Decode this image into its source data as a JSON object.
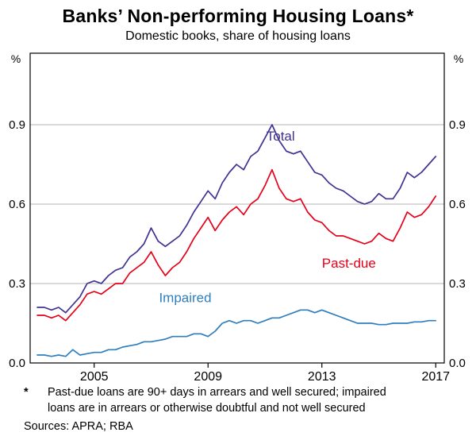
{
  "title": "Banks’ Non-performing Housing Loans*",
  "subtitle": "Domestic books, share of housing loans",
  "footnote": {
    "marker": "*",
    "line1": "Past-due loans are 90+ days in arrears and well secured; impaired",
    "line2": "loans are in arrears or otherwise doubtful and not well secured"
  },
  "sources": "Sources: APRA; RBA",
  "chart_data": {
    "type": "line",
    "title": "Banks’ Non-performing Housing Loans",
    "subtitle": "Domestic books, share of housing loans",
    "unit_left": "%",
    "unit_right": "%",
    "xlim": [
      2002.75,
      2017.3
    ],
    "ylim": [
      0,
      1.17
    ],
    "x_ticks": [
      2005,
      2009,
      2013,
      2017
    ],
    "y_ticks": [
      0.0,
      0.3,
      0.6,
      0.9
    ],
    "grid": true,
    "grid_color": "#b5b5b5",
    "axis_color": "#000000",
    "x_start": 2003.0,
    "x_step": 0.25,
    "series": [
      {
        "name": "Total",
        "color": "#3f3293",
        "label_pos": [
          2011.55,
          0.84
        ],
        "values": [
          0.21,
          0.21,
          0.2,
          0.21,
          0.19,
          0.22,
          0.25,
          0.3,
          0.31,
          0.3,
          0.33,
          0.35,
          0.36,
          0.4,
          0.42,
          0.45,
          0.51,
          0.46,
          0.44,
          0.46,
          0.48,
          0.52,
          0.57,
          0.61,
          0.65,
          0.62,
          0.68,
          0.72,
          0.75,
          0.73,
          0.78,
          0.8,
          0.85,
          0.9,
          0.84,
          0.8,
          0.79,
          0.8,
          0.76,
          0.72,
          0.71,
          0.68,
          0.66,
          0.65,
          0.63,
          0.61,
          0.6,
          0.61,
          0.64,
          0.62,
          0.62,
          0.66,
          0.72,
          0.7,
          0.72,
          0.75,
          0.78
        ]
      },
      {
        "name": "Past-due",
        "color": "#e60019",
        "label_pos": [
          2013.95,
          0.36
        ],
        "values": [
          0.18,
          0.18,
          0.17,
          0.18,
          0.16,
          0.19,
          0.22,
          0.26,
          0.27,
          0.26,
          0.28,
          0.3,
          0.3,
          0.34,
          0.36,
          0.38,
          0.42,
          0.37,
          0.33,
          0.36,
          0.38,
          0.42,
          0.47,
          0.51,
          0.55,
          0.5,
          0.54,
          0.57,
          0.59,
          0.56,
          0.6,
          0.62,
          0.67,
          0.73,
          0.66,
          0.62,
          0.61,
          0.62,
          0.57,
          0.54,
          0.53,
          0.5,
          0.48,
          0.48,
          0.47,
          0.46,
          0.45,
          0.46,
          0.49,
          0.47,
          0.46,
          0.51,
          0.57,
          0.55,
          0.56,
          0.59,
          0.63
        ]
      },
      {
        "name": "Impaired",
        "color": "#2f7ebe",
        "label_pos": [
          2008.2,
          0.23
        ],
        "values": [
          0.03,
          0.03,
          0.025,
          0.03,
          0.025,
          0.05,
          0.03,
          0.035,
          0.04,
          0.04,
          0.05,
          0.05,
          0.06,
          0.065,
          0.07,
          0.08,
          0.08,
          0.085,
          0.09,
          0.1,
          0.1,
          0.1,
          0.11,
          0.11,
          0.1,
          0.12,
          0.15,
          0.16,
          0.15,
          0.16,
          0.16,
          0.15,
          0.16,
          0.17,
          0.17,
          0.18,
          0.19,
          0.2,
          0.2,
          0.19,
          0.2,
          0.19,
          0.18,
          0.17,
          0.16,
          0.15,
          0.15,
          0.15,
          0.145,
          0.145,
          0.15,
          0.15,
          0.15,
          0.155,
          0.155,
          0.16,
          0.16
        ]
      }
    ]
  }
}
